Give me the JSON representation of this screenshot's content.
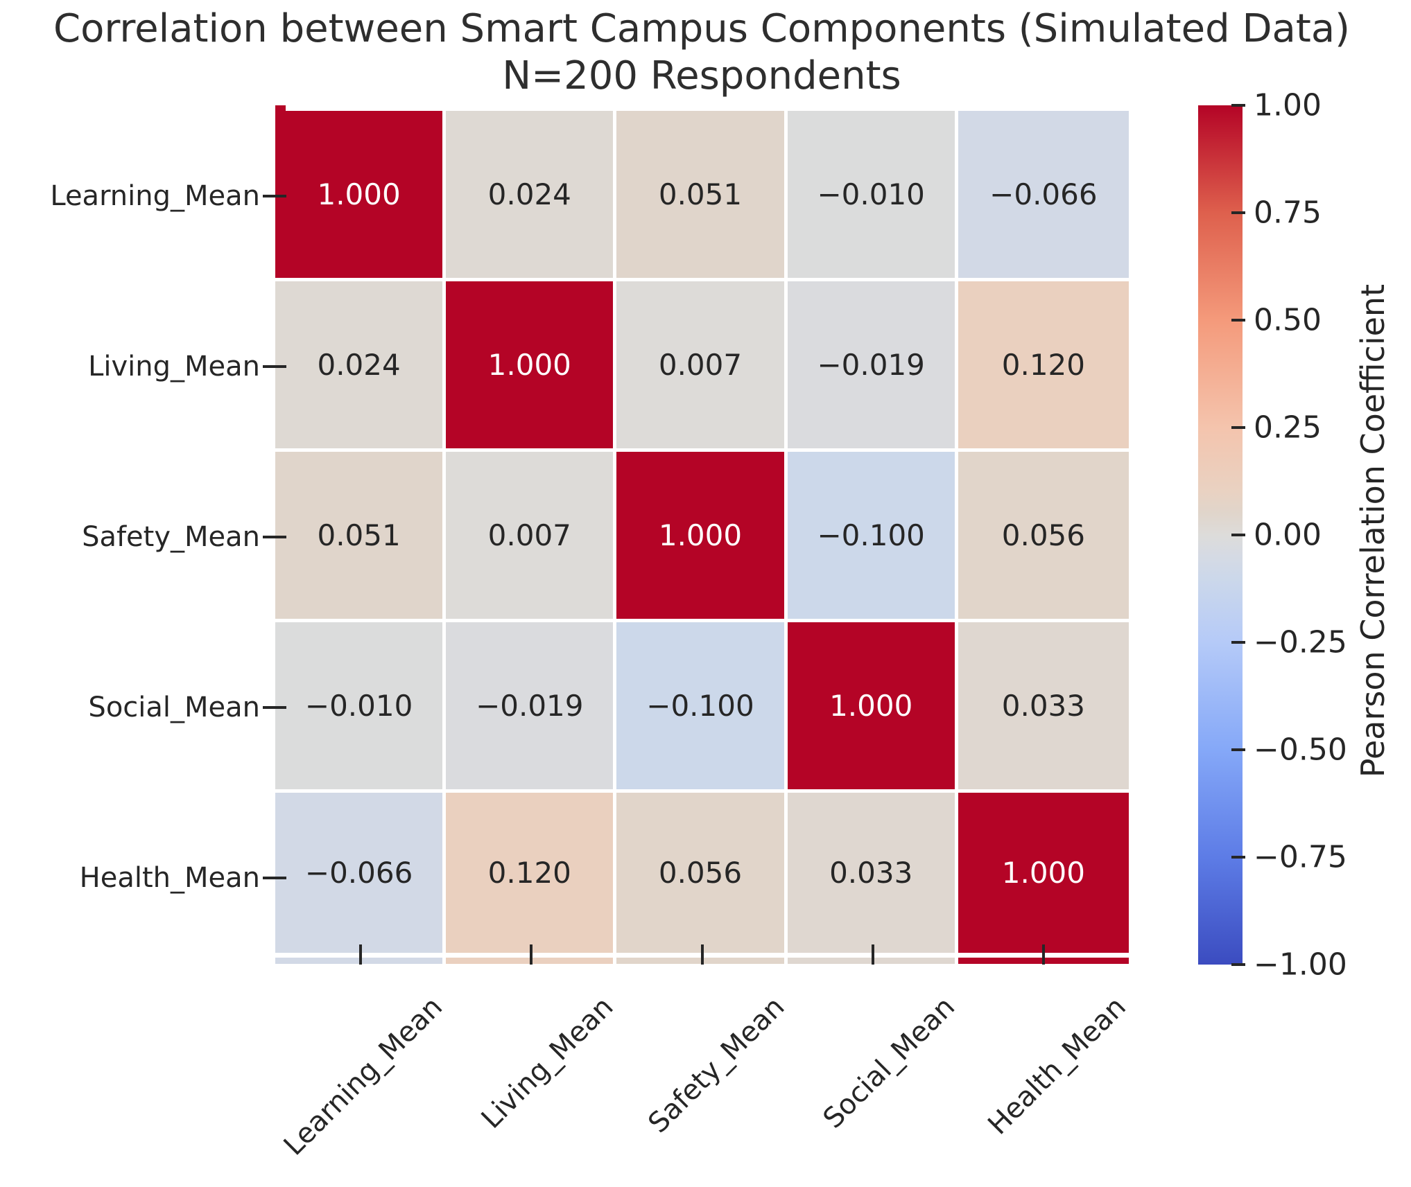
{
  "title": {
    "line1": "Correlation between Smart Campus Components (Simulated Data)",
    "line2": "N=200 Respondents"
  },
  "chart_data": {
    "type": "heatmap",
    "categories": [
      "Learning_Mean",
      "Living_Mean",
      "Safety_Mean",
      "Social_Mean",
      "Health_Mean"
    ],
    "matrix": [
      [
        1.0,
        0.024,
        0.051,
        -0.01,
        -0.066
      ],
      [
        0.024,
        1.0,
        0.007,
        -0.019,
        0.12
      ],
      [
        0.051,
        0.007,
        1.0,
        -0.1,
        0.056
      ],
      [
        -0.01,
        -0.019,
        -0.1,
        1.0,
        0.033
      ],
      [
        -0.066,
        0.12,
        0.056,
        0.033,
        1.0
      ]
    ],
    "value_decimals": 3,
    "vmin": -1,
    "vmax": 1,
    "grid": true,
    "colormap": "coolwarm",
    "colormap_stops": [
      {
        "v": -1.0,
        "c": "#3b4cc0"
      },
      {
        "v": -0.75,
        "c": "#5d7ce6"
      },
      {
        "v": -0.5,
        "c": "#85a8f8"
      },
      {
        "v": -0.25,
        "c": "#b5caf8"
      },
      {
        "v": -0.1,
        "c": "#ccd8ea"
      },
      {
        "v": -0.05,
        "c": "#d5dae4"
      },
      {
        "v": 0.0,
        "c": "#dddcda"
      },
      {
        "v": 0.05,
        "c": "#e0d5cb"
      },
      {
        "v": 0.1,
        "c": "#e9d2c2"
      },
      {
        "v": 0.25,
        "c": "#f4c4ad"
      },
      {
        "v": 0.5,
        "c": "#f49a7b"
      },
      {
        "v": 0.75,
        "c": "#de604d"
      },
      {
        "v": 1.0,
        "c": "#b40426"
      }
    ],
    "annotation_color_light_cell": "#262626",
    "annotation_color_dark_cell": "#ffffff",
    "colorbar": {
      "label": "Pearson Correlation Coefficient",
      "tick_labels": [
        "1.00",
        "0.75",
        "0.50",
        "0.25",
        "0.00",
        "−0.25",
        "−0.50",
        "−0.75",
        "−1.00"
      ],
      "tick_values": [
        1.0,
        0.75,
        0.5,
        0.25,
        0.0,
        -0.25,
        -0.5,
        -0.75,
        -1.0
      ],
      "position": "right"
    }
  }
}
